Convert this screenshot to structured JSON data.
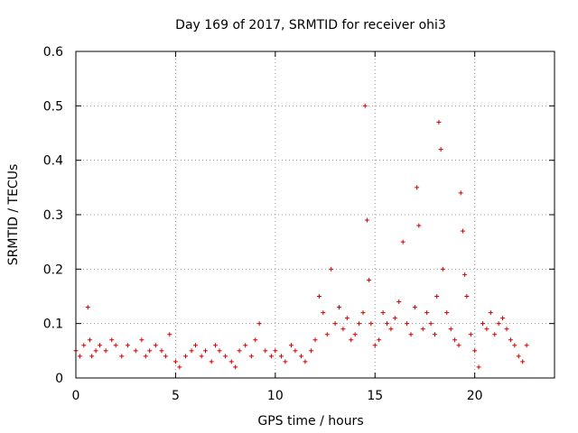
{
  "chart_data": {
    "type": "scatter",
    "title": "Day 169 of 2017, SRMTID for receiver ohi3",
    "xlabel": "GPS time / hours",
    "ylabel": "SRMTID / TECUs",
    "xlim": [
      0,
      24
    ],
    "ylim": [
      0,
      0.6
    ],
    "x_ticks": [
      "0",
      "5",
      "10",
      "15",
      "20"
    ],
    "y_ticks": [
      "0",
      "0.1",
      "0.2",
      "0.3",
      "0.4",
      "0.5",
      "0.6"
    ],
    "grid": true,
    "marker": "plus",
    "series": [
      {
        "name": "SRMTID",
        "color": "#cc0000",
        "x": [
          0.0,
          0.2,
          0.4,
          0.6,
          0.7,
          0.8,
          1.0,
          1.2,
          1.5,
          1.8,
          2.0,
          2.3,
          2.6,
          3.0,
          3.3,
          3.5,
          3.7,
          4.0,
          4.3,
          4.5,
          4.7,
          5.0,
          5.2,
          5.5,
          5.8,
          6.0,
          6.3,
          6.5,
          6.8,
          7.0,
          7.2,
          7.5,
          7.8,
          8.0,
          8.2,
          8.5,
          8.8,
          9.0,
          9.2,
          9.5,
          9.8,
          10.0,
          10.3,
          10.5,
          10.8,
          11.0,
          11.3,
          11.5,
          11.8,
          12.0,
          12.2,
          12.4,
          12.6,
          12.8,
          13.0,
          13.2,
          13.4,
          13.6,
          13.8,
          14.0,
          14.2,
          14.4,
          14.5,
          14.6,
          14.7,
          14.8,
          15.0,
          15.2,
          15.4,
          15.6,
          15.8,
          16.0,
          16.2,
          16.4,
          16.6,
          16.8,
          17.0,
          17.1,
          17.2,
          17.4,
          17.6,
          17.8,
          18.0,
          18.1,
          18.2,
          18.3,
          18.4,
          18.6,
          18.8,
          19.0,
          19.2,
          19.3,
          19.4,
          19.5,
          19.6,
          19.8,
          20.0,
          20.2,
          20.4,
          20.6,
          20.8,
          21.0,
          21.2,
          21.4,
          21.6,
          21.8,
          22.0,
          22.2,
          22.4,
          22.6
        ],
        "y": [
          0.05,
          0.04,
          0.06,
          0.13,
          0.07,
          0.04,
          0.05,
          0.06,
          0.05,
          0.07,
          0.06,
          0.04,
          0.06,
          0.05,
          0.07,
          0.04,
          0.05,
          0.06,
          0.05,
          0.04,
          0.08,
          0.03,
          0.02,
          0.04,
          0.05,
          0.06,
          0.04,
          0.05,
          0.03,
          0.06,
          0.05,
          0.04,
          0.03,
          0.02,
          0.05,
          0.06,
          0.04,
          0.07,
          0.1,
          0.05,
          0.04,
          0.05,
          0.04,
          0.03,
          0.06,
          0.05,
          0.04,
          0.03,
          0.05,
          0.07,
          0.15,
          0.12,
          0.08,
          0.2,
          0.1,
          0.13,
          0.09,
          0.11,
          0.07,
          0.08,
          0.1,
          0.12,
          0.5,
          0.29,
          0.18,
          0.1,
          0.06,
          0.07,
          0.12,
          0.1,
          0.09,
          0.11,
          0.14,
          0.25,
          0.1,
          0.08,
          0.13,
          0.35,
          0.28,
          0.09,
          0.12,
          0.1,
          0.08,
          0.15,
          0.47,
          0.42,
          0.2,
          0.12,
          0.09,
          0.07,
          0.06,
          0.34,
          0.27,
          0.19,
          0.15,
          0.08,
          0.05,
          0.02,
          0.1,
          0.09,
          0.12,
          0.08,
          0.1,
          0.11,
          0.09,
          0.07,
          0.06,
          0.04,
          0.03,
          0.06
        ]
      }
    ]
  }
}
